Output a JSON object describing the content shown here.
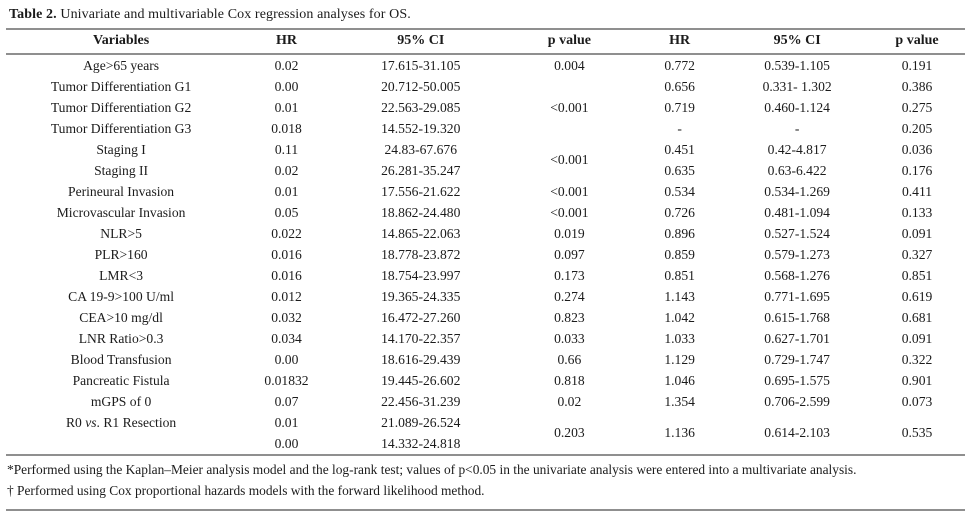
{
  "title": {
    "label": "Table 2.",
    "caption": "Univariate and multivariable Cox regression analyses for OS."
  },
  "table": {
    "headers": [
      "Variables",
      "HR",
      "95% CI",
      "p value",
      "HR",
      "95% CI",
      "p value"
    ],
    "rows": [
      [
        "Age>65 years",
        "0.02",
        "17.615-31.105",
        "0.004",
        "0.772",
        "0.539-1.105",
        "0.191"
      ],
      [
        "Tumor Differentiation G1",
        "0.00",
        "20.712-50.005",
        {
          "t": "<0.001",
          "rs": 3
        },
        "0.656",
        "0.331- 1.302",
        "0.386"
      ],
      [
        "Tumor Differentiation G2",
        "0.01",
        "22.563-29.085",
        null,
        "0.719",
        "0.460-1.124",
        "0.275"
      ],
      [
        "Tumor Differentiation G3",
        "0.018",
        "14.552-19.320",
        null,
        "-",
        "-",
        "0.205"
      ],
      [
        "Staging I",
        "0.11",
        "24.83-67.676",
        {
          "t": "<0.001",
          "rs": 2
        },
        "0.451",
        "0.42-4.817",
        "0.036"
      ],
      [
        "Staging II",
        "0.02",
        "26.281-35.247",
        null,
        "0.635",
        "0.63-6.422",
        "0.176"
      ],
      [
        "Perineural Invasion",
        "0.01",
        "17.556-21.622",
        "<0.001",
        "0.534",
        "0.534-1.269",
        "0.411"
      ],
      [
        "Microvascular Invasion",
        "0.05",
        "18.862-24.480",
        "<0.001",
        "0.726",
        "0.481-1.094",
        "0.133"
      ],
      [
        "NLR>5",
        "0.022",
        "14.865-22.063",
        "0.019",
        "0.896",
        "0.527-1.524",
        "0.091"
      ],
      [
        "PLR>160",
        "0.016",
        "18.778-23.872",
        "0.097",
        "0.859",
        "0.579-1.273",
        "0.327"
      ],
      [
        "LMR<3",
        "0.016",
        "18.754-23.997",
        "0.173",
        "0.851",
        "0.568-1.276",
        "0.851"
      ],
      [
        "CA 19-9>100 U/ml",
        "0.012",
        "19.365-24.335",
        "0.274",
        "1.143",
        "0.771-1.695",
        "0.619"
      ],
      [
        "CEA>10 mg/dl",
        "0.032",
        "16.472-27.260",
        "0.823",
        "1.042",
        "0.615-1.768",
        "0.681"
      ],
      [
        "LNR Ratio>0.3",
        "0.034",
        "14.170-22.357",
        "0.033",
        "1.033",
        "0.627-1.701",
        "0.091"
      ],
      [
        "Blood Transfusion",
        "0.00",
        "18.616-29.439",
        "0.66",
        "1.129",
        "0.729-1.747",
        "0.322"
      ],
      [
        "Pancreatic Fistula",
        "0.01832",
        "19.445-26.602",
        "0.818",
        "1.046",
        "0.695-1.575",
        "0.901"
      ],
      [
        "mGPS of 0",
        "0.07",
        "22.456-31.239",
        "0.02",
        "1.354",
        "0.706-2.599",
        "0.073"
      ],
      [
        {
          "segs": [
            {
              "t": "R0 "
            },
            {
              "t": "vs",
              "i": true
            },
            {
              "t": ". R1 Resection"
            }
          ]
        },
        "0.01",
        "21.089-26.524",
        {
          "t": "0.203",
          "rs": 2
        },
        {
          "t": "1.136",
          "rs": 2
        },
        {
          "t": "0.614-2.103",
          "rs": 2
        },
        {
          "t": "0.535",
          "rs": 2
        }
      ],
      [
        "",
        "0.00",
        "14.332-24.818",
        null,
        null,
        null,
        null
      ]
    ],
    "col_widths": [
      "24%",
      "10.5%",
      "17.5%",
      "13.5%",
      "9.5%",
      "15%",
      "10%"
    ]
  },
  "footnotes": [
    "*Performed using the Kaplan–Meier analysis model and the log-rank test; values of p<0.05 in the univariate analysis were entered into a multivariate analysis.",
    "† Performed using Cox proportional hazards models with the forward likelihood method."
  ]
}
